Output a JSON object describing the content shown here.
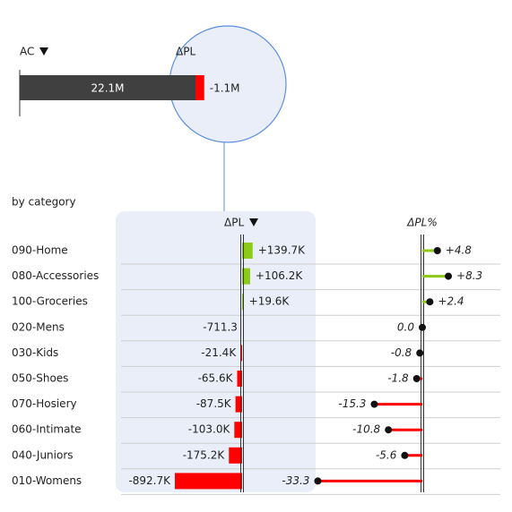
{
  "chart_data": [
    {
      "type": "total",
      "series": [
        {
          "name": "AC",
          "values": [
            22100000
          ],
          "value_labels": [
            "22.1M"
          ],
          "color": "#404040"
        },
        {
          "name": "ΔPL",
          "values": [
            -1100000
          ],
          "value_labels": [
            "-1.1M"
          ],
          "color": "#ff0000"
        }
      ]
    },
    {
      "type": "bar",
      "subtitle": "by category",
      "title": "ΔPL",
      "categories": [
        "090-Home",
        "080-Accessories",
        "100-Groceries",
        "020-Mens",
        "030-Kids",
        "050-Shoes",
        "070-Hosiery",
        "060-Intimate",
        "040-Juniors",
        "010-Womens"
      ],
      "values": [
        139700,
        106200,
        19600,
        -711.3,
        -21400,
        -65600,
        -87500,
        -103000,
        -175200,
        -892700
      ],
      "value_labels": [
        "+139.7K",
        "+106.2K",
        "+19.6K",
        "-711.3",
        "-21.4K",
        "-65.6K",
        "-87.5K",
        "-103.0K",
        "-175.2K",
        "-892.7K"
      ],
      "positive_color": "#8cc919",
      "negative_color": "#ff0000"
    },
    {
      "type": "pin",
      "title": "ΔPL%",
      "values": [
        4.8,
        8.3,
        2.4,
        0.0,
        -0.8,
        -1.8,
        -15.3,
        -10.8,
        -5.6,
        -33.3
      ],
      "value_labels": [
        "+4.8",
        "+8.3",
        "+2.4",
        "0.0",
        "-0.8",
        "-1.8",
        "-15.3",
        "-10.8",
        "-5.6",
        "-33.3"
      ],
      "positive_color": "#8cc919",
      "negative_color": "#ff0000"
    }
  ]
}
